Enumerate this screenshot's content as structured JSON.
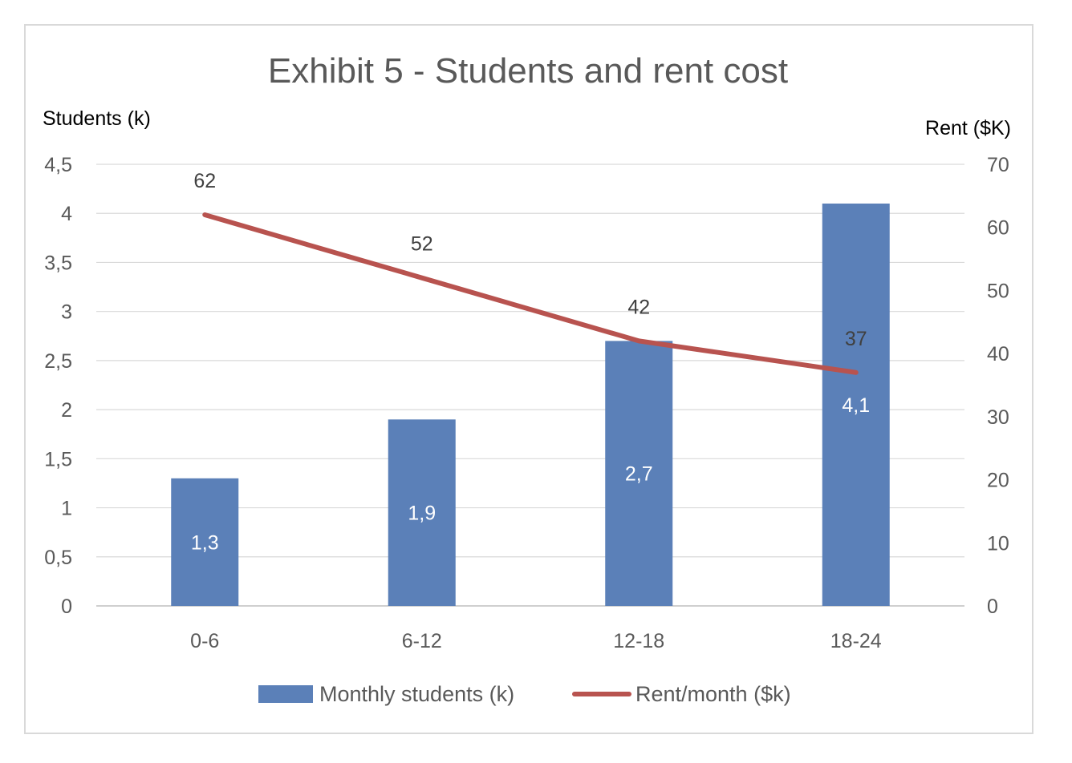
{
  "chart_data": {
    "type": "bar",
    "title": "Exhibit 5 - Students and rent cost",
    "ylabel": "Students (k)",
    "y2label": "Rent ($K)",
    "categories": [
      "0-6",
      "6-12",
      "12-18",
      "18-24"
    ],
    "ylim": [
      0,
      4.5
    ],
    "y2lim": [
      0,
      70
    ],
    "yticks": [
      "0",
      "0,5",
      "1",
      "1,5",
      "2",
      "2,5",
      "3",
      "3,5",
      "4",
      "4,5"
    ],
    "y2ticks": [
      "0",
      "10",
      "20",
      "30",
      "40",
      "50",
      "60",
      "70"
    ],
    "grid": true,
    "legend_position": "bottom",
    "series": [
      {
        "name": "Monthly students (k)",
        "type": "bar",
        "axis": "left",
        "values": [
          1.3,
          1.9,
          2.7,
          4.1
        ],
        "labels": [
          "1,3",
          "1,9",
          "2,7",
          "4,1"
        ],
        "color": "#5b80b8"
      },
      {
        "name": "Rent/month ($k)",
        "type": "line",
        "axis": "right",
        "values": [
          62,
          52,
          42,
          37
        ],
        "labels": [
          "62",
          "52",
          "42",
          "37"
        ],
        "color": "#b8534f"
      }
    ]
  }
}
